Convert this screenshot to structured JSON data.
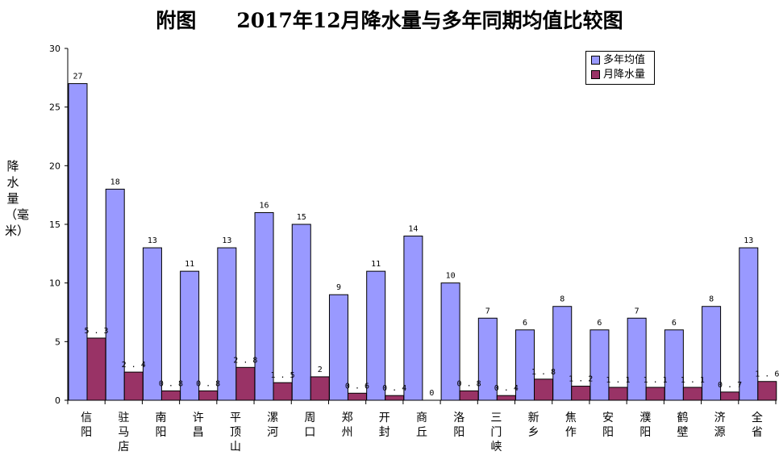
{
  "colors": {
    "avg": "#9999ff",
    "monthly": "#993366"
  },
  "chart_data": {
    "type": "bar",
    "title": "附图 2017年12月降水量与多年同期均值比较图",
    "ylabel": "降水量（毫米）",
    "ylim": [
      0,
      30
    ],
    "yticks": [
      "0",
      "5",
      "10",
      "15",
      "20",
      "25",
      "30"
    ],
    "categories": [
      "信阳",
      "驻马店",
      "南阳",
      "许昌",
      "平顶山",
      "漯河",
      "周口",
      "郑州",
      "开封",
      "商丘",
      "洛阳",
      "三门峡",
      "新乡",
      "焦作",
      "安阳",
      "濮阳",
      "鹤壁",
      "济源",
      "全省"
    ],
    "legend_position": "top-right",
    "series": [
      {
        "name": "多年均值",
        "values": [
          27,
          18,
          13,
          11,
          13,
          16,
          15,
          9,
          11,
          14,
          10,
          7,
          6,
          8,
          6,
          7,
          6,
          8,
          13
        ],
        "labels": [
          "27",
          "18",
          "13",
          "11",
          "13",
          "16",
          "15",
          "9",
          "11",
          "14",
          "10",
          "7",
          "6",
          "8",
          "6",
          "7",
          "6",
          "8",
          "13"
        ]
      },
      {
        "name": "月降水量",
        "values": [
          5.3,
          2.4,
          0.8,
          0.8,
          2.8,
          1.5,
          2,
          0.6,
          0.4,
          0,
          0.8,
          0.4,
          1.8,
          1.2,
          1.1,
          1.1,
          1.1,
          0.7,
          1.6
        ],
        "labels": [
          "5.3",
          "2.4",
          "0.8",
          "0.8",
          "2.8",
          "1.5",
          "2",
          "0.6",
          "0.4",
          "0",
          "0.8",
          "0.4",
          "1.8",
          "1.2",
          "1.1",
          "1.1",
          "1.1",
          "0.7",
          "1.6"
        ]
      }
    ]
  }
}
